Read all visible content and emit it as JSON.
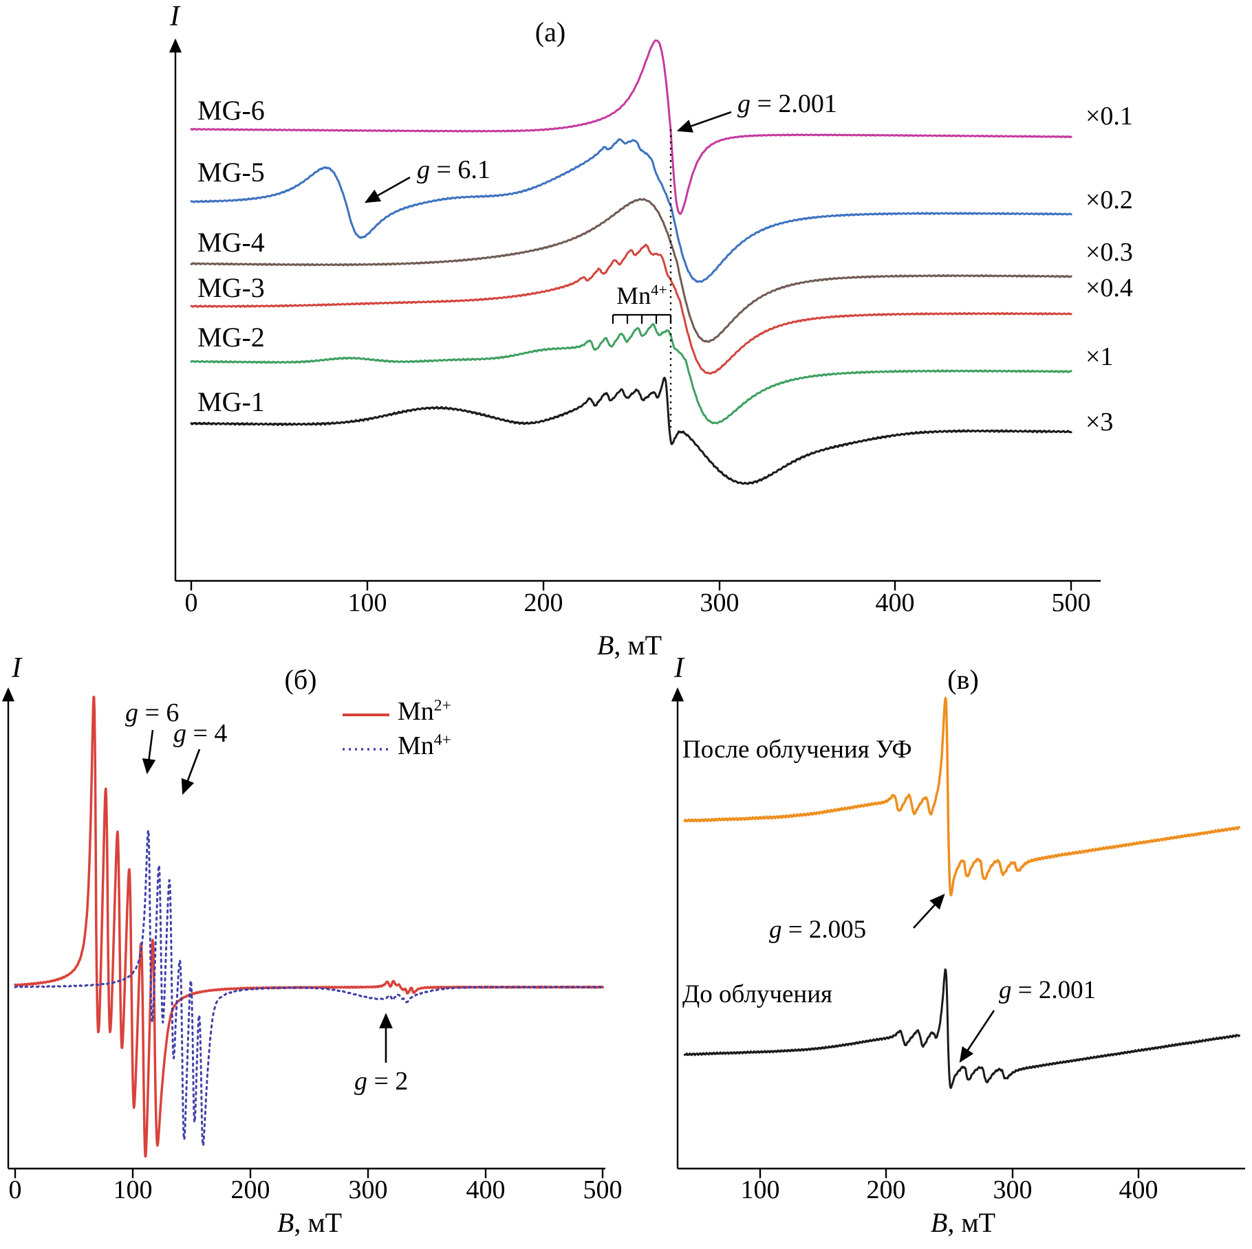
{
  "figure": {
    "background": "#ffffff"
  },
  "panel_a": {
    "tag": "(а)",
    "y_axis_label": "I",
    "x_axis_label": {
      "sym": "B",
      "rest": ", мТ"
    },
    "ticks": [
      "0",
      "100",
      "200",
      "300",
      "400",
      "500"
    ],
    "curve_labels": [
      "MG-6",
      "MG-5",
      "MG-4",
      "MG-3",
      "MG-2",
      "MG-1"
    ],
    "multipliers": [
      "×0.1",
      "×0.2",
      "×0.3",
      "×0.4",
      "×1",
      "×3"
    ],
    "ann_g2001": {
      "sym": "g",
      "rest": " = 2.001"
    },
    "ann_g61": {
      "sym": "g",
      "rest": " = 6.1"
    },
    "mn_marker": {
      "base": "Mn",
      "sup": "4+"
    }
  },
  "panel_b": {
    "tag": "(б)",
    "y_axis_label": "I",
    "x_axis_label": {
      "sym": "B",
      "rest": ", мТ"
    },
    "ticks": [
      "0",
      "100",
      "200",
      "300",
      "400",
      "500"
    ],
    "legend": [
      {
        "base": "Mn",
        "sup": "2+"
      },
      {
        "base": "Mn",
        "sup": "4+"
      }
    ],
    "ann_g6": {
      "sym": "g",
      "rest": " = 6"
    },
    "ann_g4": {
      "sym": "g",
      "rest": " = 4"
    },
    "ann_g2": {
      "sym": "g",
      "rest": " = 2"
    }
  },
  "panel_v": {
    "tag": "(в)",
    "y_axis_label": "I",
    "x_axis_label": {
      "sym": "B",
      "rest": ", мТ"
    },
    "ticks": [
      "100",
      "200",
      "300",
      "400"
    ],
    "labels": {
      "after": "После облучения УФ",
      "before": "До облучения"
    },
    "ann_g2005": {
      "sym": "g",
      "rest": " = 2.005"
    },
    "ann_g2001": {
      "sym": "g",
      "rest": " = 2.001"
    }
  },
  "chart_data": [
    {
      "panel_id": "a",
      "type": "line",
      "title": "(а)",
      "xlabel": "B, мТ",
      "ylabel": "I",
      "xlim": [
        0,
        500
      ],
      "x_ticks": [
        0,
        100,
        200,
        300,
        400,
        500
      ],
      "x_unit": "мТ",
      "annotations": [
        {
          "text": "g = 2.001",
          "x_mT": 272.5,
          "style": "arrow-to-dashed-line"
        },
        {
          "text": "g = 6.1",
          "x_mT": 95,
          "style": "arrow-to-MG-5-dip"
        },
        {
          "text": "Mn4+",
          "x_mT": 256,
          "style": "sextet-comb-over-MG-2"
        }
      ],
      "series": [
        {
          "name": "MG-6",
          "scale": "×0.1",
          "color": "#c53a9e",
          "w": 3,
          "xdom": [
            0,
            500
          ],
          "base": 188,
          "slope": 0.022,
          "noise": 0.7,
          "seed": 1,
          "comp": [
            {
              "t": "g",
              "c": 240,
              "w": 30,
              "a": 6
            },
            {
              "t": "dl",
              "c": 272.5,
              "wl": 14,
              "wr": 9,
              "au": 132,
              "ad": 118
            }
          ]
        },
        {
          "name": "MG-5",
          "scale": "×0.2",
          "color": "#3d72c0",
          "w": 3,
          "xdom": [
            0,
            500
          ],
          "base": 296,
          "slope": 0.03,
          "noise": 1.0,
          "seed": 2,
          "comp": [
            {
              "t": "dl",
              "c": 88,
              "wl": 20,
              "wr": 15,
              "au": 52,
              "ad": 50
            },
            {
              "t": "g",
              "c": 150,
              "w": 25,
              "a": 6
            },
            {
              "t": "g",
              "c": 215,
              "w": 22,
              "a": 9
            },
            {
              "t": "g",
              "c": 245,
              "w": 18,
              "a": 10
            },
            {
              "t": "dl",
              "c": 236,
              "w": 3,
              "a": 4
            },
            {
              "t": "dl",
              "c": 245,
              "w": 3,
              "a": 4
            },
            {
              "t": "dl",
              "c": 254,
              "w": 3,
              "a": 4
            },
            {
              "t": "dl",
              "c": 263,
              "w": 3,
              "a": 4
            },
            {
              "t": "dl",
              "c": 273,
              "wl": 42,
              "wr": 27,
              "au": 88,
              "ad": 105
            }
          ]
        },
        {
          "name": "MG-4",
          "scale": "×0.3",
          "color": "#6f5b52",
          "w": 3,
          "xdom": [
            0,
            500
          ],
          "base": 384,
          "slope": 0.035,
          "noise": 1.0,
          "seed": 3,
          "comp": [
            {
              "t": "g",
              "c": 235,
              "w": 80,
              "a": 16
            },
            {
              "t": "dl",
              "c": 276,
              "wl": 34,
              "wr": 29,
              "au": 88,
              "ad": 112
            }
          ]
        },
        {
          "name": "MG-3",
          "scale": "×0.4",
          "color": "#d2453d",
          "w": 3,
          "xdom": [
            0,
            500
          ],
          "base": 446,
          "slope": 0.02,
          "noise": 1.0,
          "seed": 4,
          "comp": [
            {
              "t": "g",
              "c": 120,
              "w": 60,
              "a": 5
            },
            {
              "t": "g",
              "c": 240,
              "w": 75,
              "a": 15
            },
            {
              "t": "dl",
              "c": 224,
              "w": 3,
              "a": 4
            },
            {
              "t": "dl",
              "c": 233,
              "w": 3,
              "a": 6
            },
            {
              "t": "dl",
              "c": 242,
              "w": 3,
              "a": 6
            },
            {
              "t": "dl",
              "c": 251,
              "w": 3,
              "a": 6
            },
            {
              "t": "dl",
              "c": 260,
              "w": 3,
              "a": 6
            },
            {
              "t": "dl",
              "c": 269,
              "w": 3,
              "a": 6
            },
            {
              "t": "dl",
              "c": 278,
              "wl": 34,
              "wr": 28,
              "au": 75,
              "ad": 100
            }
          ]
        },
        {
          "name": "MG-2",
          "scale": "×1",
          "color": "#3fa060",
          "w": 3,
          "xdom": [
            0,
            500
          ],
          "base": 526,
          "slope": 0.028,
          "noise": 1.1,
          "seed": 5,
          "comp": [
            {
              "t": "g",
              "c": 90,
              "w": 20,
              "a": 7
            },
            {
              "t": "g",
              "c": 150,
              "w": 30,
              "a": 4
            },
            {
              "t": "g",
              "c": 200,
              "w": 20,
              "a": 8
            },
            {
              "t": "g",
              "c": 243,
              "w": 60,
              "a": 16
            },
            {
              "t": "dl",
              "c": 228,
              "w": 3.2,
              "a": 8
            },
            {
              "t": "dl",
              "c": 237,
              "w": 3.2,
              "a": 8
            },
            {
              "t": "dl",
              "c": 246,
              "w": 3.2,
              "a": 8
            },
            {
              "t": "dl",
              "c": 255,
              "w": 3.2,
              "a": 8
            },
            {
              "t": "dl",
              "c": 264,
              "w": 3.2,
              "a": 8
            },
            {
              "t": "dl",
              "c": 273,
              "w": 3.2,
              "a": 8
            },
            {
              "t": "dl",
              "c": 281,
              "wl": 30,
              "wr": 28,
              "au": 40,
              "ad": 88
            }
          ]
        },
        {
          "name": "MG-1",
          "scale": "×3",
          "color": "#1a1a1a",
          "w": 3,
          "xdom": [
            0,
            500
          ],
          "base": 616,
          "slope": 0.024,
          "noise": 1.4,
          "seed": 6,
          "comp": [
            {
              "t": "g",
              "c": 140,
              "w": 38,
              "a": 26
            },
            {
              "t": "g",
              "c": 190,
              "w": 15,
              "a": -4
            },
            {
              "t": "g",
              "c": 250,
              "w": 38,
              "a": 50
            },
            {
              "t": "dl",
              "c": 228,
              "w": 3,
              "a": 7
            },
            {
              "t": "dl",
              "c": 237,
              "w": 3,
              "a": 7
            },
            {
              "t": "dl",
              "c": 246,
              "w": 3,
              "a": 7
            },
            {
              "t": "dl",
              "c": 255,
              "w": 3,
              "a": 7
            },
            {
              "t": "dl",
              "c": 264,
              "w": 3,
              "a": 7
            },
            {
              "t": "dl",
              "c": 271,
              "wl": 3.5,
              "wr": 3.5,
              "au": 48,
              "ad": 40
            },
            {
              "t": "g",
              "c": 310,
              "w": 30,
              "a": -70
            },
            {
              "t": "g",
              "c": 350,
              "w": 45,
              "a": -26
            }
          ]
        }
      ]
    },
    {
      "panel_id": "b",
      "type": "line",
      "title": "(б)",
      "xlabel": "B, мТ",
      "ylabel": "I",
      "xlim": [
        0,
        500
      ],
      "x_ticks": [
        0,
        100,
        200,
        300,
        400,
        500
      ],
      "x_unit": "мТ",
      "legend_position": "top-right-inside",
      "annotations": [
        {
          "text": "g = 6",
          "x_mT": 110
        },
        {
          "text": "g = 4",
          "x_mT": 143
        },
        {
          "text": "g = 2",
          "x_mT": 318
        }
      ],
      "series": [
        {
          "name": "Mn2+",
          "color": "#d9423b",
          "w": 3.5,
          "xdom": [
            0,
            500
          ],
          "base": 1436,
          "slope": 0,
          "noise": 0.8,
          "seed": 7,
          "comp": [
            {
              "t": "dl",
              "c": 99,
              "wl": 26,
              "wr": 18,
              "au": 55,
              "ad": 85
            },
            {
              "t": "dl",
              "c": 69,
              "w": 3.6,
              "au": 370,
              "ad": 160
            },
            {
              "t": "dl",
              "c": 79,
              "w": 3.6,
              "au": 255,
              "ad": 150
            },
            {
              "t": "dl",
              "c": 89,
              "w": 3.6,
              "au": 190,
              "ad": 160
            },
            {
              "t": "dl",
              "c": 99,
              "w": 3.6,
              "au": 180,
              "ad": 170
            },
            {
              "t": "dl",
              "c": 109,
              "w": 3.6,
              "au": 170,
              "ad": 185
            },
            {
              "t": "dl",
              "c": 119,
              "w": 3.6,
              "au": 190,
              "ad": 120
            },
            {
              "t": "g",
              "c": 124,
              "w": 6,
              "a": -55
            },
            {
              "t": "dl",
              "c": 328,
              "w": 6,
              "au": 8,
              "ad": 8
            },
            {
              "t": "dl",
              "c": 318,
              "w": 2.5,
              "a": 5
            },
            {
              "t": "dl",
              "c": 323,
              "w": 2.5,
              "a": 5
            },
            {
              "t": "dl",
              "c": 333,
              "w": 2.5,
              "a": 5
            },
            {
              "t": "dl",
              "c": 338,
              "w": 2.5,
              "a": 5
            }
          ]
        },
        {
          "name": "Mn4+",
          "color": "#4040aa",
          "w": 3,
          "dash": "3,6",
          "xdom": [
            0,
            500
          ],
          "base": 1436,
          "slope": 0,
          "noise": 0.7,
          "seed": 8,
          "comp": [
            {
              "t": "dl",
              "c": 137,
              "wl": 18,
              "wr": 14,
              "au": 60,
              "ad": 85
            },
            {
              "t": "dl",
              "c": 115,
              "w": 3.2,
              "au": 185,
              "ad": 120
            },
            {
              "t": "dl",
              "c": 124,
              "w": 3.2,
              "au": 135,
              "ad": 130
            },
            {
              "t": "dl",
              "c": 133,
              "w": 3.2,
              "au": 125,
              "ad": 140
            },
            {
              "t": "dl",
              "c": 142,
              "w": 3.2,
              "au": 115,
              "ad": 150
            },
            {
              "t": "dl",
              "c": 151,
              "w": 3.2,
              "au": 105,
              "ad": 155
            },
            {
              "t": "dl",
              "c": 158,
              "w": 3.2,
              "au": 80,
              "ad": 130
            },
            {
              "t": "g",
              "c": 162,
              "w": 5,
              "a": -58
            },
            {
              "t": "g",
              "c": 315,
              "w": 35,
              "a": -18
            },
            {
              "t": "dl",
              "c": 328,
              "w": 5,
              "au": 6,
              "ad": 6
            },
            {
              "t": "dl",
              "c": 320,
              "w": 2.5,
              "a": 4
            },
            {
              "t": "dl",
              "c": 332,
              "w": 2.5,
              "a": 4
            }
          ]
        }
      ]
    },
    {
      "panel_id": "v",
      "type": "line",
      "title": "(в)",
      "xlabel": "B, мТ",
      "ylabel": "I",
      "xlim": [
        34,
        485
      ],
      "x_ticks": [
        100,
        200,
        300,
        400
      ],
      "x_unit": "мТ",
      "annotations": [
        {
          "text": "g = 2.005",
          "x_mT": 249,
          "series": "после облучения УФ"
        },
        {
          "text": "g = 2.001",
          "x_mT": 249,
          "series": "до облучения"
        }
      ],
      "series": [
        {
          "name": "after-uv",
          "label": "После облучения УФ",
          "color": "#ee8f1f",
          "w": 3.5,
          "xdom": [
            40,
            480
          ],
          "base": 1194,
          "slope": -0.06,
          "noise": 1.6,
          "seed": 9,
          "comp": [
            {
              "t": "g",
              "c": 205,
              "w": 55,
              "a": 16
            },
            {
              "t": "dl",
              "c": 208,
              "w": 4,
              "au": 10,
              "ad": 14
            },
            {
              "t": "dl",
              "c": 220,
              "w": 4,
              "au": 12,
              "ad": 16
            },
            {
              "t": "dl",
              "c": 233,
              "w": 4,
              "au": 8,
              "ad": 20
            },
            {
              "t": "dl",
              "c": 249,
              "wl": 3.5,
              "wr": 3.5,
              "au": 160,
              "ad": 112
            },
            {
              "t": "step",
              "c": 253,
              "w": 3,
              "a": -75
            },
            {
              "t": "dl",
              "c": 262,
              "w": 4,
              "au": 6,
              "ad": 22
            },
            {
              "t": "dl",
              "c": 275,
              "w": 5,
              "au": 5,
              "ad": 26
            },
            {
              "t": "dl",
              "c": 290,
              "w": 5,
              "au": 4,
              "ad": 18
            },
            {
              "t": "dl",
              "c": 302,
              "w": 5,
              "au": 3,
              "ad": 12
            },
            {
              "t": "ramp",
              "c": 305,
              "a": 0.22
            }
          ]
        },
        {
          "name": "before",
          "label": "До облучения",
          "color": "#1a1a1a",
          "w": 3,
          "xdom": [
            40,
            480
          ],
          "base": 1534,
          "slope": -0.06,
          "noise": 1.4,
          "seed": 10,
          "comp": [
            {
              "t": "g",
              "c": 212,
              "w": 50,
              "a": 14
            },
            {
              "t": "dl",
              "c": 213,
              "w": 4,
              "au": 9,
              "ad": 12
            },
            {
              "t": "dl",
              "c": 227,
              "w": 4,
              "au": 10,
              "ad": 14
            },
            {
              "t": "dl",
              "c": 238,
              "w": 4,
              "au": 6,
              "ad": 10
            },
            {
              "t": "dl",
              "c": 249,
              "wl": 3.5,
              "wr": 3.5,
              "au": 105,
              "ad": 60
            },
            {
              "t": "step",
              "c": 253,
              "w": 3,
              "a": -38
            },
            {
              "t": "dl",
              "c": 263,
              "w": 4,
              "au": 5,
              "ad": 16
            },
            {
              "t": "dl",
              "c": 277,
              "w": 5,
              "au": 4,
              "ad": 18
            },
            {
              "t": "dl",
              "c": 292,
              "w": 5,
              "au": 3,
              "ad": 12
            },
            {
              "t": "ramp",
              "c": 300,
              "a": 0.22
            }
          ]
        }
      ]
    }
  ]
}
